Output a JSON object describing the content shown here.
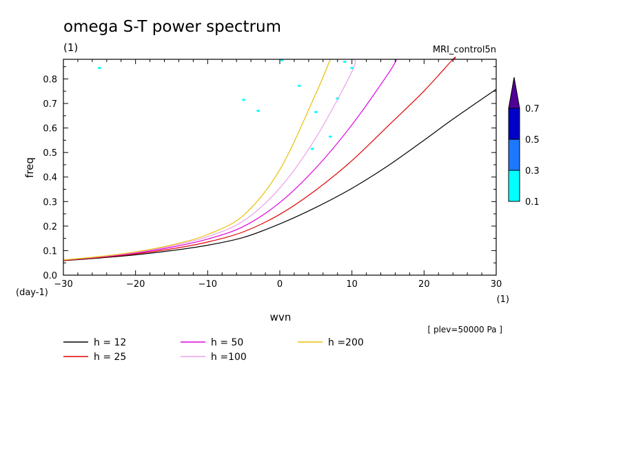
{
  "chart_data": {
    "type": "line",
    "title": "omega S-T power spectrum",
    "subtitle_left": "(1)",
    "subtitle_right": "MRI_control5n",
    "xlabel": "wvn",
    "ylabel": "freq",
    "xunit": "(1)",
    "yunit": "(day-1)",
    "level_note": "[ plev=50000 Pa ]",
    "xlim": [
      -30,
      30
    ],
    "ylim": [
      0,
      0.88
    ],
    "xticks": [
      -30,
      -20,
      -10,
      0,
      10,
      20,
      30
    ],
    "yticks": [
      0.0,
      0.1,
      0.2,
      0.3,
      0.4,
      0.5,
      0.6,
      0.7,
      0.8
    ],
    "xtick_labels": [
      "-30",
      "-20",
      "-10",
      "0",
      "10",
      "20",
      "30"
    ],
    "ytick_labels": [
      "0.0",
      "0.1",
      "0.2",
      "0.3",
      "0.4",
      "0.5",
      "0.6",
      "0.7",
      "0.8"
    ],
    "x": [
      -30,
      -25,
      -20,
      -15,
      -10,
      -5,
      0,
      5,
      10,
      15,
      20,
      24,
      30
    ],
    "series": [
      {
        "name": "h = 12",
        "legend": "h = 12",
        "color": "#000000",
        "values": [
          0.059,
          0.07,
          0.083,
          0.1,
          0.122,
          0.154,
          0.209,
          0.276,
          0.354,
          0.446,
          0.55,
          0.636,
          0.758
        ]
      },
      {
        "name": "h = 25",
        "legend": "h = 25",
        "color": "#e00000",
        "values": [
          0.06,
          0.072,
          0.087,
          0.107,
          0.135,
          0.177,
          0.248,
          0.347,
          0.467,
          0.608,
          0.751,
          0.88,
          null
        ]
      },
      {
        "name": "h = 50",
        "legend": "h = 50",
        "color": "#e000e0",
        "values": [
          0.061,
          0.074,
          0.09,
          0.114,
          0.147,
          0.199,
          0.296,
          0.437,
          0.613,
          0.82,
          null,
          null,
          null
        ]
      },
      {
        "name": "h =100",
        "legend": "h =100",
        "color": "#e8a0e8",
        "values": [
          0.062,
          0.075,
          0.093,
          0.119,
          0.157,
          0.222,
          0.355,
          0.56,
          0.83,
          null,
          null,
          null,
          null
        ]
      },
      {
        "name": "h =200",
        "legend": "h =200",
        "color": "#e8c000",
        "values": [
          0.062,
          0.076,
          0.095,
          0.123,
          0.166,
          0.245,
          0.43,
          0.74,
          null,
          null,
          null,
          null,
          null
        ]
      }
    ],
    "curve_end_x": {
      "h = 12": 30,
      "h = 25": 24.2,
      "h = 50": 16.2,
      "h =100": 10.3,
      "h =200": 7.0
    },
    "power_patches": [
      {
        "x": -25.0,
        "y": 0.845,
        "level": 0.1
      },
      {
        "x": 0.3,
        "y": 0.876,
        "level": 0.1
      },
      {
        "x": 9.0,
        "y": 0.87,
        "level": 0.1
      },
      {
        "x": 10.0,
        "y": 0.845,
        "level": 0.1
      },
      {
        "x": 2.7,
        "y": 0.772,
        "level": 0.1
      },
      {
        "x": -5.0,
        "y": 0.715,
        "level": 0.1
      },
      {
        "x": -3.0,
        "y": 0.67,
        "level": 0.1
      },
      {
        "x": 8.0,
        "y": 0.72,
        "level": 0.1
      },
      {
        "x": 5.0,
        "y": 0.665,
        "level": 0.1
      },
      {
        "x": 7.0,
        "y": 0.565,
        "level": 0.1
      },
      {
        "x": 4.5,
        "y": 0.515,
        "level": 0.1
      }
    ],
    "colorbar": {
      "levels": [
        "0.1",
        "0.3",
        "0.5",
        "0.7"
      ],
      "colors": [
        "#00ffff",
        "#1e78ff",
        "#0000c8",
        "#500096"
      ]
    },
    "legend_placement": "below",
    "grid": false
  }
}
